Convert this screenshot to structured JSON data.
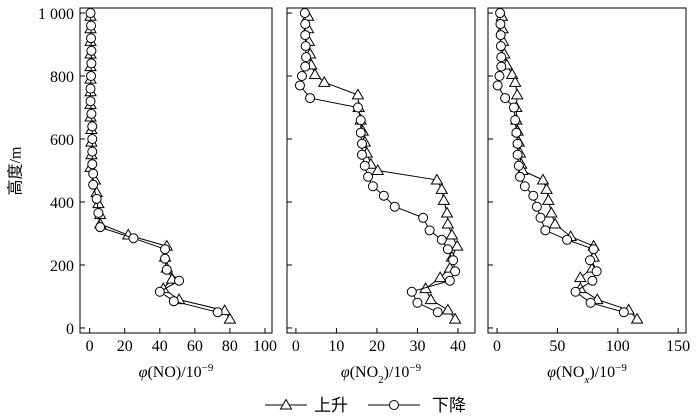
{
  "chart_data": [
    {
      "type": "line",
      "ylabel": "高度/m",
      "ylim": [
        -16,
        1016
      ],
      "y_ticks": [
        0,
        200,
        400,
        600,
        800,
        1000
      ],
      "y_tick_labels": [
        "0",
        "200",
        "400",
        "600",
        "800",
        "1 000"
      ],
      "xlabel": {
        "sym": "φ",
        "a": "(NO",
        "sub": "",
        "b": ")/10",
        "sup": "−9",
        "sub_italic": false
      },
      "xlim": [
        -5.5,
        104
      ],
      "x_ticks": [
        0,
        20,
        40,
        60,
        80,
        100
      ],
      "x_tick_labels": [
        "0",
        "20",
        "40",
        "60",
        "80",
        "100"
      ],
      "grid": false,
      "legend": "bottom-center",
      "series": [
        {
          "name": "上升",
          "marker": "open-triangle",
          "color": "#000000",
          "x": [
            0.5,
            0.5,
            0.5,
            0.5,
            0.5,
            0.5,
            0.5,
            0.5,
            0.5,
            1,
            1,
            1,
            0.5,
            3,
            4,
            5,
            6,
            6,
            22,
            44,
            43,
            44,
            47,
            42,
            51,
            77,
            80
          ],
          "y": [
            990,
            950,
            910,
            870,
            830,
            790,
            750,
            710,
            670,
            630,
            590,
            550,
            510,
            470,
            430,
            395,
            360,
            330,
            295,
            260,
            225,
            190,
            155,
            125,
            90,
            55,
            28
          ]
        },
        {
          "name": "下降",
          "marker": "open-circle",
          "color": "#000000",
          "x": [
            0.5,
            0.8,
            0.8,
            1,
            1,
            0.8,
            0.5,
            0.5,
            1,
            1.5,
            1.5,
            1.5,
            1.5,
            2,
            2,
            4,
            5,
            6,
            25,
            43,
            43,
            44,
            51,
            40,
            48,
            73
          ],
          "y": [
            1000,
            960,
            920,
            880,
            840,
            800,
            760,
            720,
            680,
            640,
            600,
            560,
            520,
            490,
            455,
            410,
            365,
            320,
            285,
            250,
            220,
            185,
            150,
            115,
            85,
            50
          ]
        }
      ]
    },
    {
      "type": "line",
      "ylim": [
        -16,
        1016
      ],
      "y_ticks": [
        0,
        200,
        400,
        600,
        800,
        1000
      ],
      "xlabel": {
        "sym": "φ",
        "a": "(NO",
        "sub": "2",
        "b": ")/10",
        "sup": "−9",
        "sub_italic": false
      },
      "xlim": [
        -2.2,
        44.2
      ],
      "x_ticks": [
        0,
        10,
        20,
        30,
        40
      ],
      "x_tick_labels": [
        "0",
        "10",
        "20",
        "30",
        "40"
      ],
      "grid": false,
      "series": [
        {
          "name": "上升",
          "marker": "open-triangle",
          "color": "#000000",
          "x": [
            3,
            3,
            3.2,
            3.5,
            3.8,
            4.7,
            7,
            15.3,
            15.5,
            16,
            16.5,
            17,
            17.5,
            18.5,
            20.2,
            34.8,
            36,
            36.5,
            37.3,
            37.5,
            38.5,
            39.8,
            38.5,
            38,
            35.6,
            32,
            33.3,
            37.5,
            39.3
          ],
          "y": [
            990,
            950,
            910,
            870,
            835,
            805,
            780,
            740,
            700,
            660,
            625,
            590,
            555,
            520,
            500,
            470,
            440,
            405,
            365,
            330,
            295,
            260,
            225,
            190,
            160,
            125,
            90,
            57,
            28
          ]
        },
        {
          "name": "下降",
          "marker": "open-circle",
          "color": "#000000",
          "x": [
            2.2,
            2.3,
            2.3,
            2.4,
            2.5,
            2.3,
            1.5,
            1.0,
            3.5,
            15.3,
            16,
            16,
            16.3,
            16.3,
            17,
            17.8,
            19,
            21.7,
            24.4,
            31.4,
            33,
            36,
            37.5,
            38.8,
            39.3,
            38,
            28.6,
            30,
            35
          ],
          "y": [
            1000,
            965,
            930,
            895,
            860,
            830,
            800,
            770,
            730,
            700,
            660,
            620,
            585,
            550,
            515,
            480,
            450,
            420,
            385,
            350,
            310,
            280,
            250,
            215,
            180,
            150,
            115,
            80,
            50
          ]
        }
      ]
    },
    {
      "type": "line",
      "ylim": [
        -16,
        1016
      ],
      "y_ticks": [
        0,
        200,
        400,
        600,
        800,
        1000
      ],
      "xlabel": {
        "sym": "φ",
        "a": "(NO",
        "sub": "x",
        "b": ")/10",
        "sup": "−9",
        "sub_italic": true
      },
      "xlim": [
        -7.5,
        156.5
      ],
      "x_ticks": [
        0,
        50,
        100,
        150
      ],
      "x_tick_labels": [
        "0",
        "50",
        "100",
        "150"
      ],
      "grid": false,
      "series": [
        {
          "name": "上升",
          "marker": "open-triangle",
          "color": "#000000",
          "x": [
            4,
            4.5,
            5,
            6,
            8,
            12.5,
            15,
            16.7,
            16,
            16,
            17,
            18,
            19,
            20,
            21,
            38,
            41,
            42.5,
            45,
            48,
            61,
            80,
            80,
            79,
            69,
            69,
            83,
            109,
            116
          ],
          "y": [
            990,
            950,
            910,
            870,
            835,
            805,
            780,
            740,
            700,
            660,
            625,
            590,
            555,
            520,
            500,
            470,
            440,
            405,
            365,
            330,
            290,
            260,
            225,
            190,
            160,
            125,
            90,
            57,
            28
          ]
        },
        {
          "name": "下降",
          "marker": "open-circle",
          "color": "#000000",
          "x": [
            2.5,
            2.8,
            3,
            3.2,
            3.5,
            3.5,
            2,
            0.5,
            6.7,
            14,
            15,
            16,
            17,
            17,
            18,
            19,
            23,
            30,
            33,
            36,
            40,
            58,
            80,
            77,
            82.5,
            79,
            65,
            77.5,
            105
          ],
          "y": [
            1000,
            965,
            930,
            895,
            860,
            830,
            800,
            770,
            730,
            700,
            660,
            620,
            585,
            550,
            515,
            480,
            450,
            420,
            385,
            350,
            310,
            280,
            250,
            215,
            180,
            150,
            115,
            80,
            50
          ]
        }
      ]
    }
  ]
}
